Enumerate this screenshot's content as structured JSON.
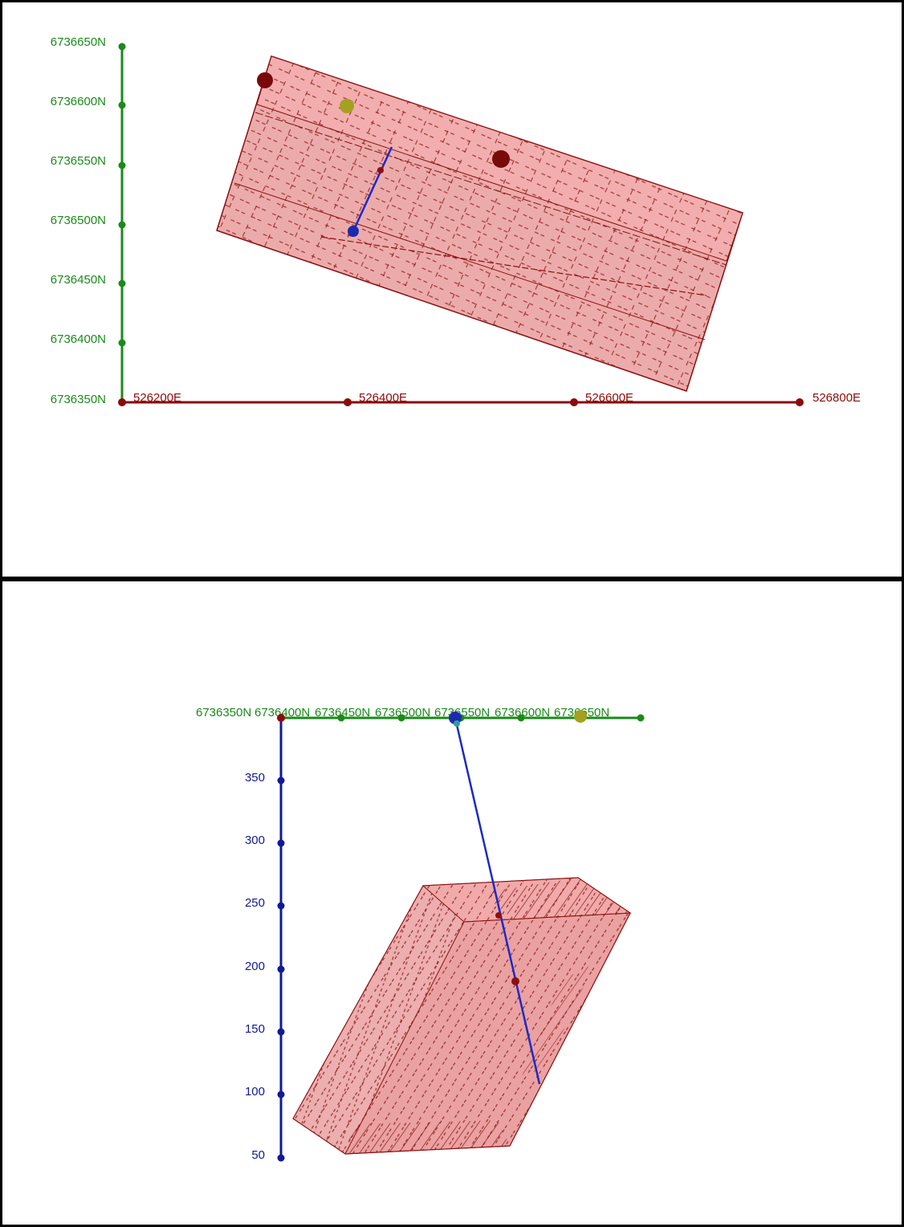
{
  "colors": {
    "north_axis": "#1a8a1a",
    "east_axis": "#8b0a0a",
    "elev_axis": "#101a96",
    "block_fill": "#e07878",
    "block_fill_light": "#f2a0a0",
    "block_edge": "#8b1010",
    "drillhole": "#1a2ac8",
    "collar_blue": "#1c2ab0",
    "marker_dark_red": "#7a0a0a",
    "marker_olive": "#a4a020"
  },
  "plan_view": {
    "north_ticks": [
      "6736650N",
      "6736600N",
      "6736550N",
      "6736500N",
      "6736450N",
      "6736400N",
      "6736350N"
    ],
    "east_ticks": [
      "526200E",
      "526400E",
      "526600E",
      "526800E"
    ]
  },
  "section_view": {
    "north_ticks": [
      "6736350N",
      "6736400N",
      "6736450N",
      "6736500N",
      "6736550N",
      "6736600N",
      "6736650N"
    ],
    "elevation_ticks": [
      "350",
      "300",
      "250",
      "200",
      "150",
      "100",
      "50"
    ]
  }
}
